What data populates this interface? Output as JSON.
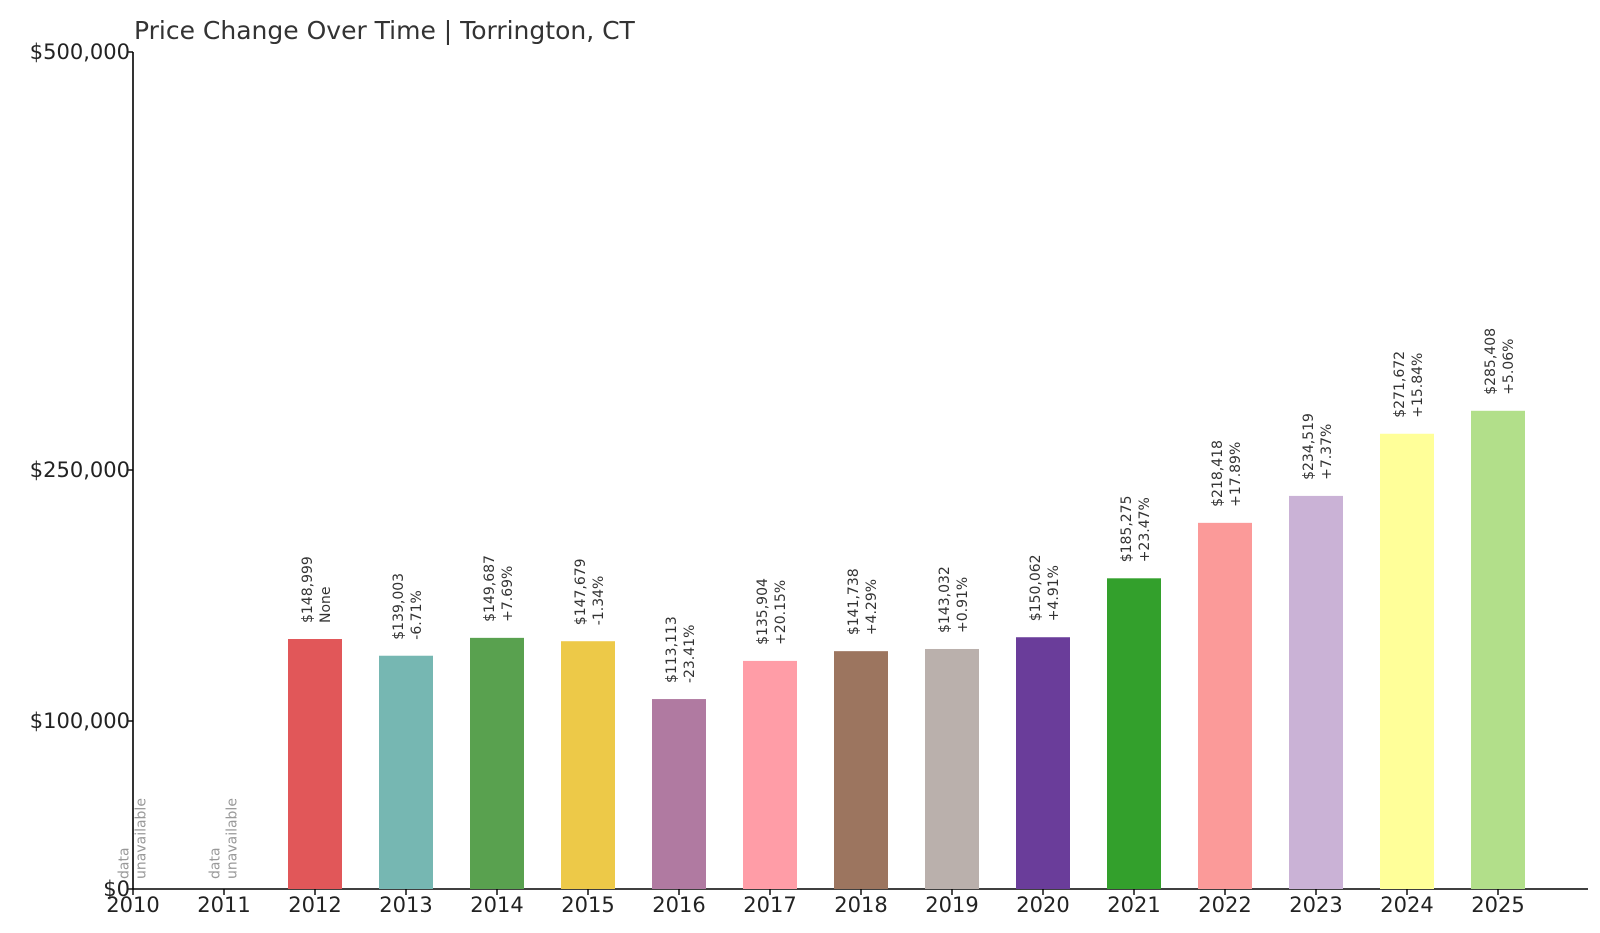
{
  "chart_data": {
    "type": "bar",
    "title": "Price Change Over Time | Torrington, CT",
    "xlabel": "",
    "ylabel": "",
    "ylim": [
      0,
      500000
    ],
    "yticks": [
      0,
      100000,
      250000,
      500000
    ],
    "ytick_labels": [
      "$0",
      "$100,000",
      "$250,000",
      "$500,000"
    ],
    "categories": [
      "2010",
      "2011",
      "2012",
      "2013",
      "2014",
      "2015",
      "2016",
      "2017",
      "2018",
      "2019",
      "2020",
      "2021",
      "2022",
      "2023",
      "2024",
      "2025"
    ],
    "values": [
      null,
      null,
      148999,
      139003,
      149687,
      147679,
      113113,
      135904,
      141738,
      143032,
      150062,
      185275,
      218418,
      234519,
      271672,
      285408
    ],
    "value_labels": [
      null,
      null,
      "$148,999",
      "$139,003",
      "$149,687",
      "$147,679",
      "$113,113",
      "$135,904",
      "$141,738",
      "$143,032",
      "$150,062",
      "$185,275",
      "$218,418",
      "$234,519",
      "$271,672",
      "$285,408"
    ],
    "change_labels": [
      null,
      null,
      "None",
      "-6.71%",
      "+7.69%",
      "-1.34%",
      "-23.41%",
      "+20.15%",
      "+4.29%",
      "+0.91%",
      "+4.91%",
      "+23.47%",
      "+17.89%",
      "+7.37%",
      "+15.84%",
      "+5.06%"
    ],
    "unavailable_label": [
      "data",
      "unavailable"
    ],
    "colors": [
      "#e15759",
      "#e15759",
      "#e15759",
      "#76b7b2",
      "#59a14f",
      "#edc948",
      "#b07aa1",
      "#ff9da7",
      "#9c755f",
      "#bab0ac",
      "#6a3d9a",
      "#33a02c",
      "#fb9a99",
      "#cab2d6",
      "#ffff99",
      "#b2df8a"
    ],
    "grid": false,
    "legend": "none"
  }
}
